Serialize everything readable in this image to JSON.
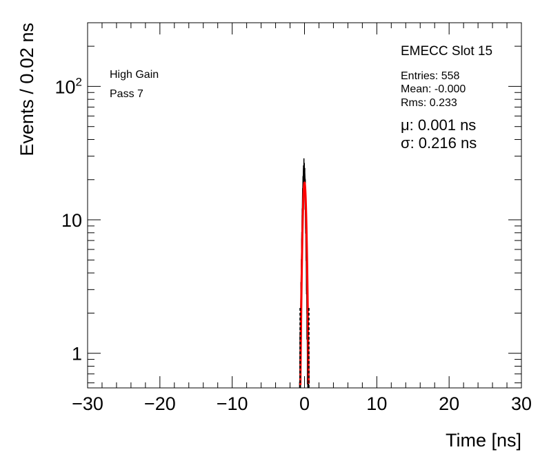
{
  "chart_data": {
    "type": "histogram",
    "xlabel": "Time [ns]",
    "ylabel": "Events / 0.02 ns",
    "xlim": [
      -30,
      30
    ],
    "ylim": [
      0.55,
      300
    ],
    "y_scale": "log",
    "x_tick_labels": [
      "−30",
      "−20",
      "−10",
      "0",
      "10",
      "20",
      "30"
    ],
    "x_tick_values": [
      -30,
      -20,
      -10,
      0,
      10,
      20,
      30
    ],
    "y_tick_values": [
      1,
      10,
      100
    ],
    "y_tick_labels": [
      {
        "base": "1",
        "exp": ""
      },
      {
        "base": "10",
        "exp": ""
      },
      {
        "base": "10",
        "exp": "2"
      }
    ],
    "left_annotations": [
      "High Gain",
      "Pass 7"
    ],
    "stats": {
      "title": "EMECC Slot 15",
      "entries": "Entries: 558",
      "mean": "Mean: -0.000",
      "rms": "Rms: 0.233",
      "mu": "μ: 0.001 ns",
      "sigma": "σ: 0.216 ns"
    },
    "series": [
      {
        "style": "histogram",
        "color": "#000000",
        "bin_width": 0.02,
        "bins": [
          [
            -0.62,
            0.6
          ],
          [
            -0.56,
            1
          ],
          [
            -0.5,
            2
          ],
          [
            -0.44,
            3
          ],
          [
            -0.38,
            5
          ],
          [
            -0.32,
            8
          ],
          [
            -0.26,
            12
          ],
          [
            -0.2,
            17
          ],
          [
            -0.14,
            21
          ],
          [
            -0.08,
            24
          ],
          [
            -0.02,
            22
          ],
          [
            0.04,
            20
          ],
          [
            0.1,
            16
          ],
          [
            0.16,
            12
          ],
          [
            0.22,
            8
          ],
          [
            0.28,
            5
          ],
          [
            0.34,
            3
          ],
          [
            0.4,
            2
          ],
          [
            0.46,
            1
          ],
          [
            0.52,
            0.6
          ]
        ]
      },
      {
        "style": "gaussian-fit",
        "color": "#ff0000",
        "amplitude": 19,
        "mu": 0.001,
        "sigma": 0.216,
        "dashed_extent": [
          -0.6,
          0.6
        ]
      }
    ]
  }
}
